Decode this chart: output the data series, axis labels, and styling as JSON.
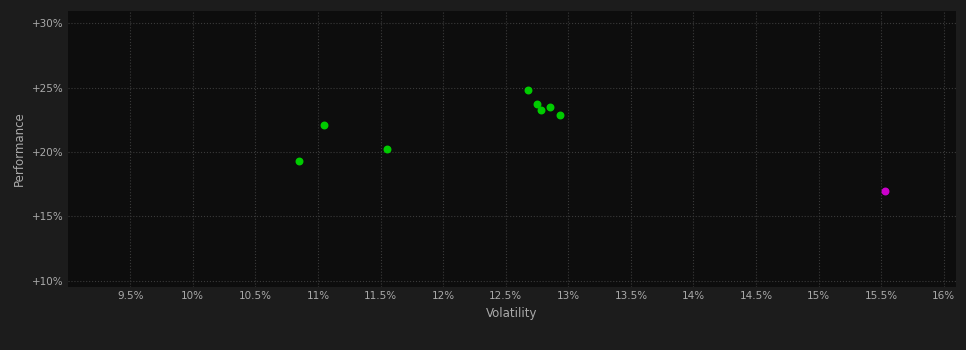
{
  "background_color": "#1c1c1c",
  "plot_bg_color": "#0d0d0d",
  "grid_color": "#3a3a3a",
  "grid_style": ":",
  "xlabel": "Volatility",
  "ylabel": "Performance",
  "xlim": [
    0.09,
    0.161
  ],
  "ylim": [
    0.095,
    0.31
  ],
  "xticks": [
    0.095,
    0.1,
    0.105,
    0.11,
    0.115,
    0.12,
    0.125,
    0.13,
    0.135,
    0.14,
    0.145,
    0.15,
    0.155,
    0.16
  ],
  "yticks": [
    0.1,
    0.15,
    0.2,
    0.25,
    0.3
  ],
  "xtick_labels": [
    "9.5%",
    "10%",
    "10.5%",
    "11%",
    "11.5%",
    "12%",
    "12.5%",
    "13%",
    "13.5%",
    "14%",
    "14.5%",
    "15%",
    "15.5%",
    "16%"
  ],
  "ytick_labels": [
    "+10%",
    "+15%",
    "+20%",
    "+25%",
    "+30%"
  ],
  "green_points": [
    [
      0.1085,
      0.193
    ],
    [
      0.1105,
      0.221
    ],
    [
      0.1155,
      0.202
    ],
    [
      0.1268,
      0.248
    ],
    [
      0.1275,
      0.237
    ],
    [
      0.1285,
      0.235
    ],
    [
      0.1278,
      0.233
    ],
    [
      0.1293,
      0.229
    ]
  ],
  "magenta_points": [
    [
      0.1553,
      0.17
    ]
  ],
  "green_color": "#00cc00",
  "magenta_color": "#cc00cc",
  "dot_size": 22,
  "figsize": [
    9.66,
    3.5
  ],
  "dpi": 100,
  "tick_color": "#aaaaaa",
  "label_color": "#aaaaaa",
  "tick_fontsize": 7.5,
  "label_fontsize": 8.5
}
